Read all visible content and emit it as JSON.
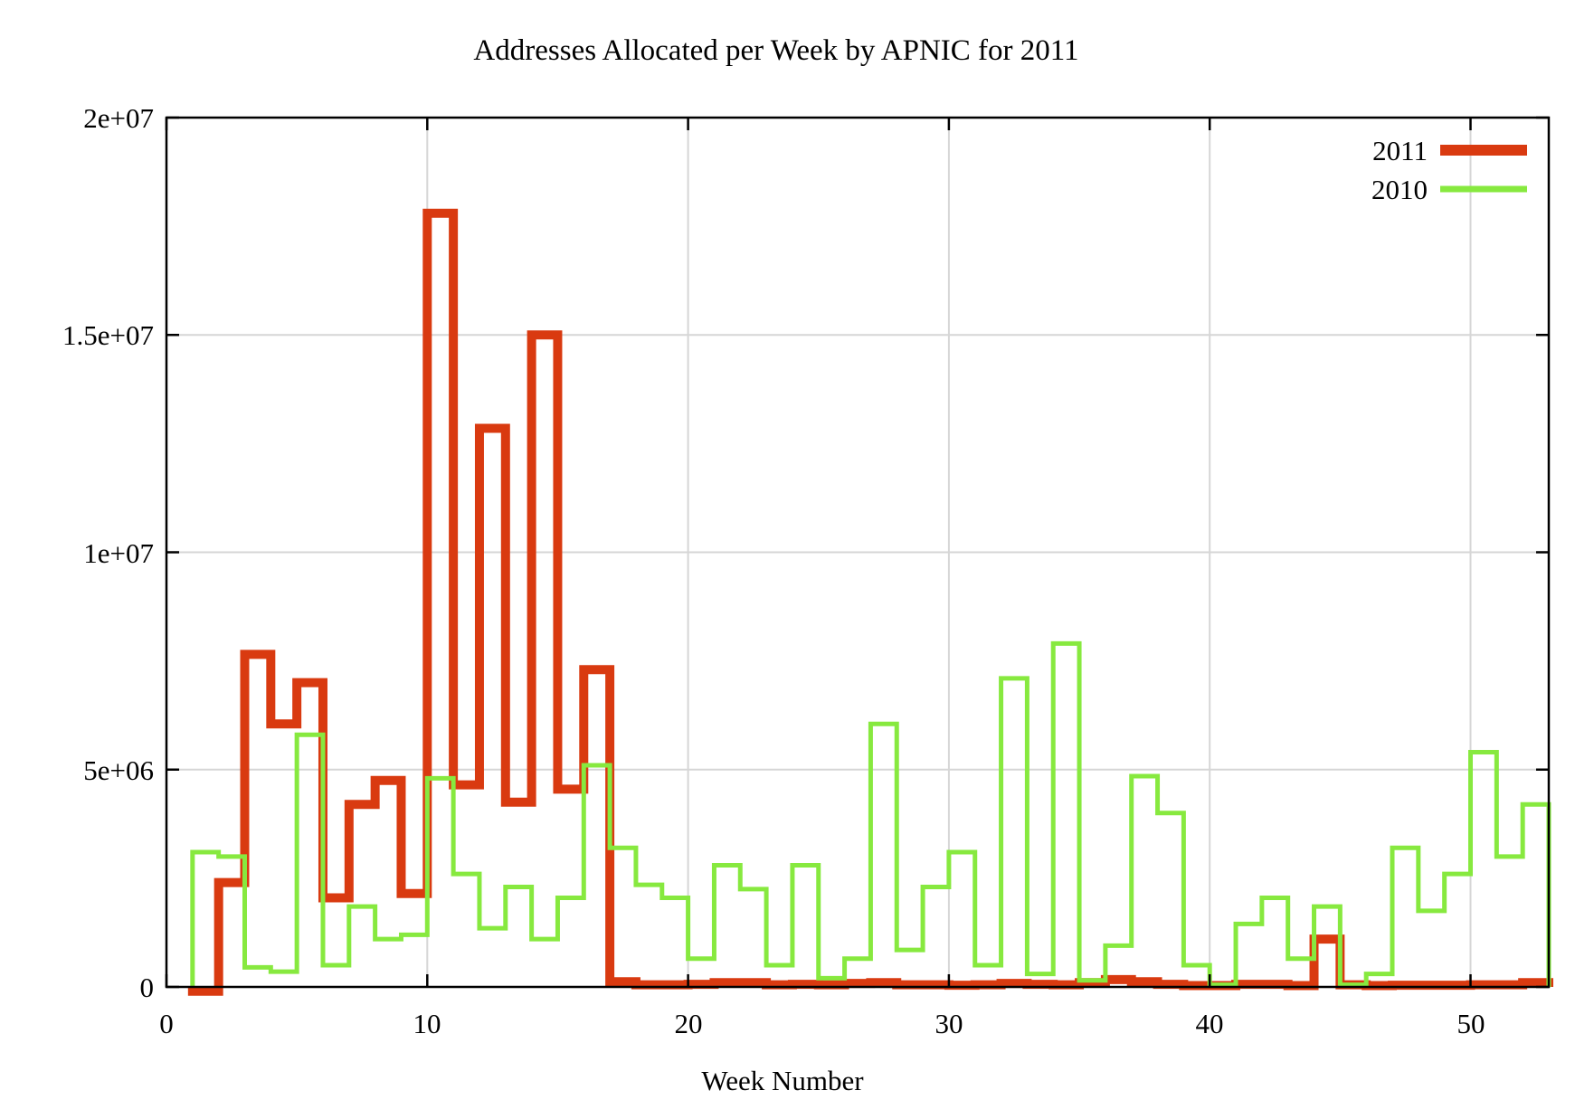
{
  "title": "Addresses Allocated per Week by APNIC for 2011",
  "x_axis_label": "Week Number",
  "legend": {
    "position": "top-right",
    "entries": [
      {
        "label": "2011",
        "color": "#d93a10",
        "line_width": 10
      },
      {
        "label": "2010",
        "color": "#87e93f",
        "line_width": 5
      }
    ]
  },
  "axes": {
    "x_tick_labels": [
      "0",
      "10",
      "20",
      "30",
      "40",
      "50"
    ],
    "x_tick_values": [
      0,
      10,
      20,
      30,
      40,
      50
    ],
    "y_tick_labels": [
      "0",
      "5e+06",
      "1e+07",
      "1.5e+07",
      "2e+07"
    ],
    "y_tick_values": [
      0,
      5000000,
      10000000,
      15000000,
      20000000
    ]
  },
  "chart_data": {
    "type": "line",
    "step_style": "steps",
    "title": "Addresses Allocated per Week by APNIC for 2011",
    "xlabel": "Week Number",
    "ylabel": "",
    "xlim": [
      0,
      53
    ],
    "ylim": [
      0,
      20000000
    ],
    "grid": true,
    "legend_position": "top-right",
    "weeks": [
      1,
      2,
      3,
      4,
      5,
      6,
      7,
      8,
      9,
      10,
      11,
      12,
      13,
      14,
      15,
      16,
      17,
      18,
      19,
      20,
      21,
      22,
      23,
      24,
      25,
      26,
      27,
      28,
      29,
      30,
      31,
      32,
      33,
      34,
      35,
      36,
      37,
      38,
      39,
      40,
      41,
      42,
      43,
      44,
      45,
      46,
      47,
      48,
      49,
      50,
      51,
      52
    ],
    "series": [
      {
        "name": "2011",
        "color": "#d93a10",
        "line_width": 10,
        "values": [
          -100000,
          2400000,
          7650000,
          6050000,
          7000000,
          2050000,
          4200000,
          4750000,
          2150000,
          17800000,
          4650000,
          12850000,
          4250000,
          15000000,
          4550000,
          7300000,
          120000,
          50000,
          50000,
          60000,
          100000,
          100000,
          50000,
          60000,
          50000,
          80000,
          100000,
          50000,
          50000,
          40000,
          50000,
          80000,
          60000,
          50000,
          100000,
          170000,
          120000,
          60000,
          30000,
          30000,
          60000,
          60000,
          30000,
          1100000,
          50000,
          30000,
          40000,
          40000,
          40000,
          50000,
          50000,
          100000
        ]
      },
      {
        "name": "2010",
        "color": "#87e93f",
        "line_width": 5,
        "values": [
          3100000,
          3000000,
          450000,
          350000,
          5800000,
          500000,
          1850000,
          1100000,
          1200000,
          4800000,
          2600000,
          1350000,
          2300000,
          1100000,
          2050000,
          5100000,
          3200000,
          2350000,
          2050000,
          650000,
          2800000,
          2250000,
          500000,
          2800000,
          200000,
          650000,
          6050000,
          850000,
          2300000,
          3100000,
          500000,
          7100000,
          300000,
          7900000,
          150000,
          950000,
          4850000,
          4000000,
          500000,
          50000,
          1450000,
          2050000,
          650000,
          1850000,
          50000,
          300000,
          3200000,
          1750000,
          2600000,
          5400000,
          3000000,
          4200000
        ]
      }
    ]
  }
}
